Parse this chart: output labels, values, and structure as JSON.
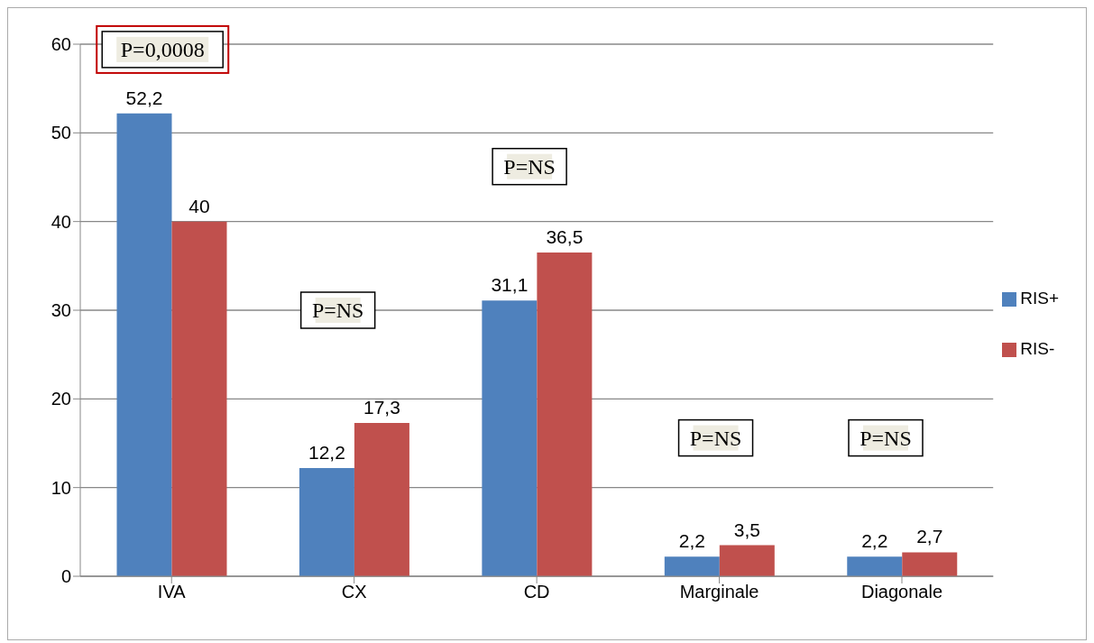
{
  "chart_data": {
    "type": "bar",
    "categories": [
      "IVA",
      "CX",
      "CD",
      "Marginale",
      "Diagonale"
    ],
    "series": [
      {
        "name": "RIS+",
        "color": "#4f81bd",
        "values": [
          52.2,
          12.2,
          31.1,
          2.2,
          2.2
        ],
        "value_labels": [
          "52,2",
          "12,2",
          "31,1",
          "2,2",
          "2,2"
        ]
      },
      {
        "name": "RIS-",
        "color": "#c0504d",
        "values": [
          40,
          17.3,
          36.5,
          3.5,
          2.7
        ],
        "value_labels": [
          "40",
          "17,3",
          "36,5",
          "3,5",
          "2,7"
        ]
      }
    ],
    "ylim": [
      0,
      60
    ],
    "yticks": [
      0,
      10,
      20,
      30,
      40,
      50,
      60
    ],
    "grid": "y",
    "legend": "right",
    "annotations": [
      "P=0,0008",
      "P=NS",
      "P=NS",
      "P=NS",
      "P=NS"
    ]
  }
}
